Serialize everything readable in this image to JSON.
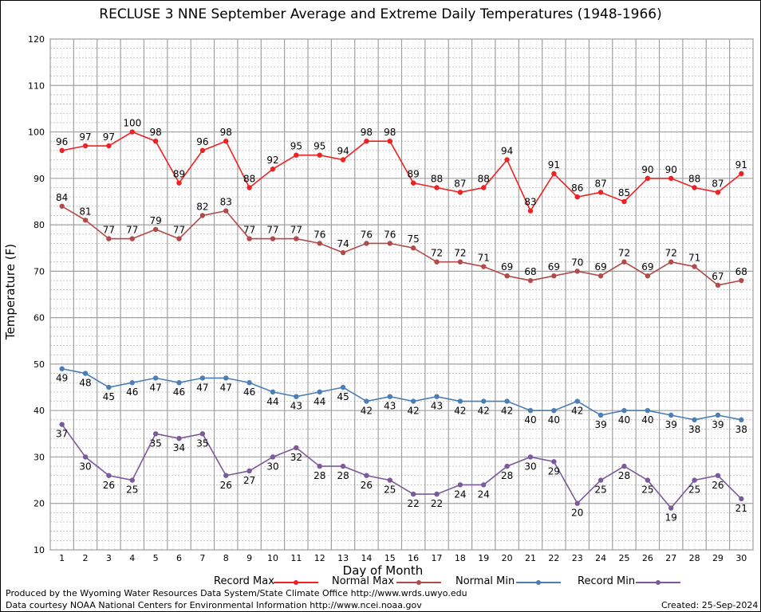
{
  "chart_data": {
    "type": "line",
    "title": "RECLUSE 3 NNE September Average and Extreme Daily Temperatures (1948-1966)",
    "xlabel": "Day of Month",
    "ylabel": "Temperature (F)",
    "x": [
      1,
      2,
      3,
      4,
      5,
      6,
      7,
      8,
      9,
      10,
      11,
      12,
      13,
      14,
      15,
      16,
      17,
      18,
      19,
      20,
      21,
      22,
      23,
      24,
      25,
      26,
      27,
      28,
      29,
      30
    ],
    "ylim": [
      10,
      120
    ],
    "yticks": [
      10,
      20,
      30,
      40,
      50,
      60,
      70,
      80,
      90,
      100,
      110,
      120
    ],
    "grid": true,
    "legend": "bottom",
    "series": [
      {
        "name": "Record Max",
        "color": "#ee2222",
        "values": [
          96,
          97,
          97,
          100,
          98,
          89,
          96,
          98,
          88,
          92,
          95,
          95,
          94,
          98,
          98,
          89,
          88,
          87,
          88,
          94,
          83,
          91,
          86,
          87,
          85,
          90,
          90,
          88,
          87,
          91
        ]
      },
      {
        "name": "Normal Max",
        "color": "#b24a4a",
        "values": [
          84,
          81,
          77,
          77,
          79,
          77,
          82,
          83,
          77,
          77,
          77,
          76,
          74,
          76,
          76,
          75,
          72,
          72,
          71,
          69,
          68,
          69,
          70,
          69,
          72,
          69,
          72,
          71,
          67,
          68
        ]
      },
      {
        "name": "Normal Min",
        "color": "#4a7eb5",
        "values": [
          49,
          48,
          45,
          46,
          47,
          46,
          47,
          47,
          46,
          44,
          43,
          44,
          45,
          42,
          43,
          42,
          43,
          42,
          42,
          42,
          40,
          40,
          42,
          39,
          40,
          40,
          39,
          38,
          39,
          38
        ]
      },
      {
        "name": "Record Min",
        "color": "#7a5a9a",
        "values": [
          37,
          30,
          26,
          25,
          35,
          34,
          35,
          26,
          27,
          30,
          32,
          28,
          28,
          26,
          25,
          22,
          22,
          24,
          24,
          28,
          30,
          29,
          20,
          25,
          28,
          25,
          19,
          25,
          26,
          21
        ]
      }
    ]
  },
  "footer": {
    "produced_by": "Produced by the Wyoming Water Resources Data System/State Climate Office http://www.wrds.uwyo.edu",
    "data_courtesy": "Data courtesy NOAA National Centers for Environmental Information http://www.ncei.noaa.gov",
    "created": "Created:  25-Sep-2024"
  }
}
